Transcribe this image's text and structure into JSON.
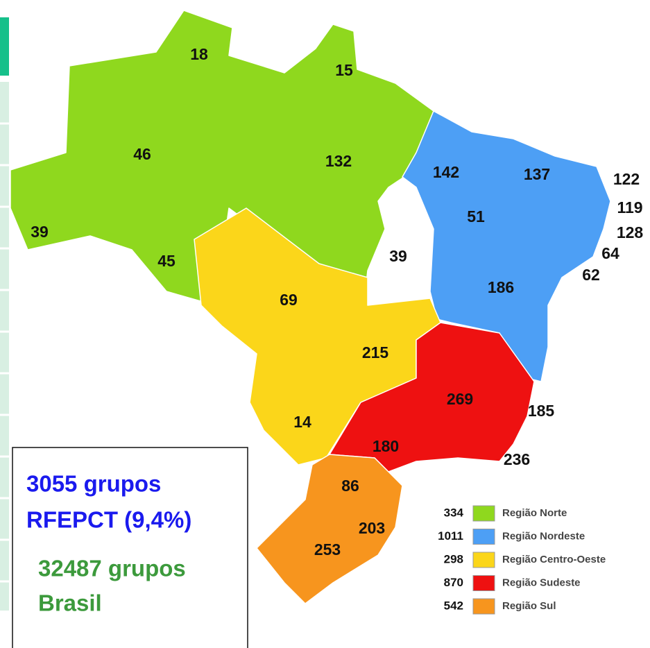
{
  "states": [
    18,
    15,
    46,
    132,
    142,
    137,
    122,
    119,
    51,
    128,
    39,
    64,
    45,
    39,
    62,
    186,
    69,
    215,
    269,
    185,
    14,
    180,
    236,
    86,
    203,
    253
  ],
  "legend": [
    {
      "count": 334,
      "name": "Região Norte"
    },
    {
      "count": 1011,
      "name": "Região Nordeste"
    },
    {
      "count": 298,
      "name": "Região Centro-Oeste"
    },
    {
      "count": 870,
      "name": "Região Sudeste"
    },
    {
      "count": 542,
      "name": "Região Sul"
    }
  ],
  "info": {
    "rfepct_line1": "3055 grupos",
    "rfepct_line2": "RFEPCT (9,4%)",
    "brasil_line1": "32487 grupos",
    "brasil_line2": "Brasil"
  }
}
